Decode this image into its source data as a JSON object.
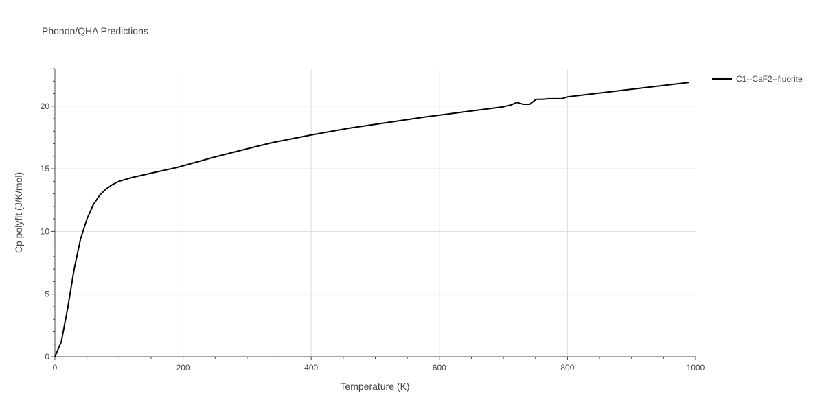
{
  "chart_data": {
    "type": "line",
    "title": "Phonon/QHA Predictions",
    "xlabel": "Temperature (K)",
    "ylabel": "Cp polyfit (J/K/mol)",
    "xlim": [
      0,
      1000
    ],
    "ylim": [
      0,
      23
    ],
    "x_ticks": [
      0,
      200,
      400,
      600,
      800,
      1000
    ],
    "y_ticks": [
      0,
      5,
      10,
      15,
      20
    ],
    "grid": true,
    "legend_position": "top-right",
    "series": [
      {
        "name": "C1--CaF2--fluorite",
        "color": "#000000",
        "x": [
          0,
          10,
          20,
          30,
          40,
          50,
          60,
          70,
          80,
          90,
          100,
          120,
          150,
          190,
          250,
          300,
          340,
          400,
          460,
          520,
          580,
          640,
          700,
          712,
          721,
          731,
          741,
          751,
          761,
          771,
          781,
          791,
          801,
          850,
          900,
          950,
          990
        ],
        "values": [
          0,
          1.2,
          3.9,
          7.0,
          9.4,
          11.0,
          12.15,
          12.9,
          13.4,
          13.75,
          14.0,
          14.3,
          14.65,
          15.1,
          15.95,
          16.6,
          17.1,
          17.7,
          18.25,
          18.7,
          19.15,
          19.55,
          19.95,
          20.1,
          20.3,
          20.15,
          20.15,
          20.55,
          20.55,
          20.6,
          20.6,
          20.6,
          20.75,
          21.05,
          21.35,
          21.65,
          21.9
        ]
      }
    ]
  }
}
